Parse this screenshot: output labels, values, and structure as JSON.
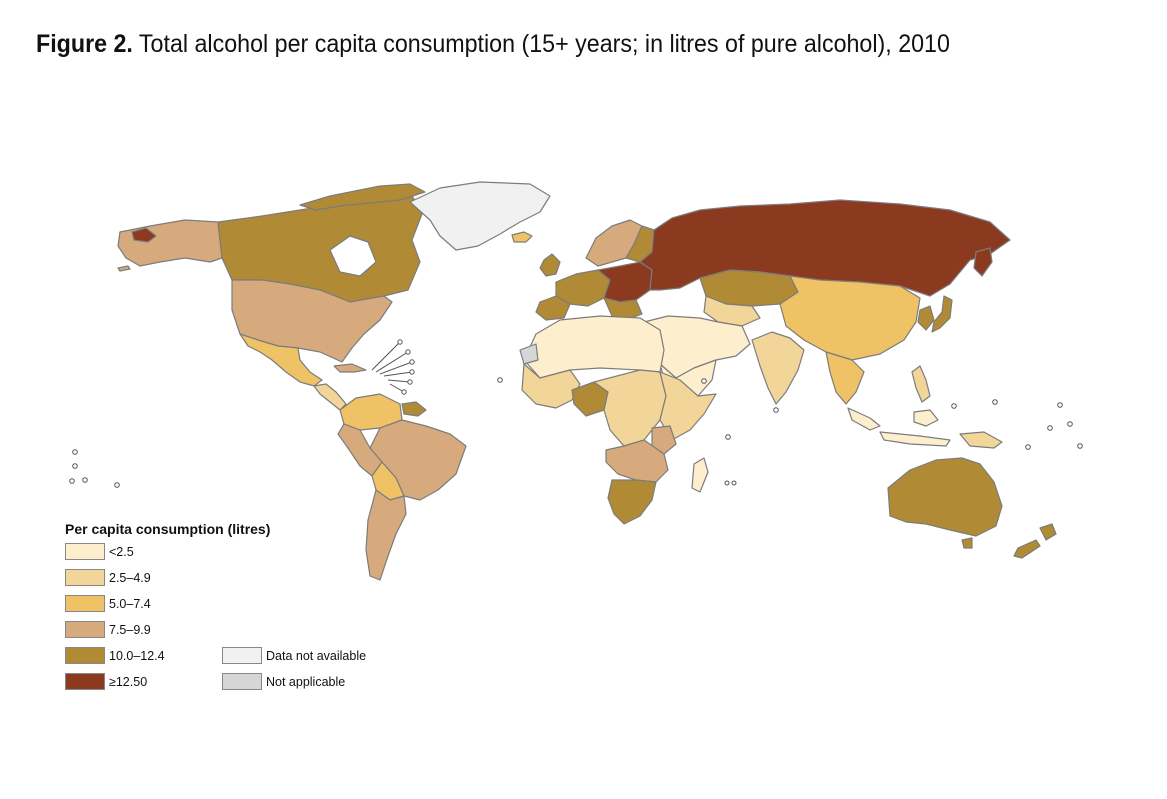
{
  "title": {
    "figure_label": "Figure 2.",
    "text": " Total alcohol per capita consumption (15+ years; in litres of pure alcohol), 2010"
  },
  "legend": {
    "title": "Per capita consumption (litres)",
    "classes": [
      {
        "label": "<2.5",
        "color": "#fdefcd"
      },
      {
        "label": "2.5–4.9",
        "color": "#f2d598"
      },
      {
        "label": "5.0–7.4",
        "color": "#efc265"
      },
      {
        "label": "7.5–9.9",
        "color": "#d6aa7c"
      },
      {
        "label": "10.0–12.4",
        "color": "#b08a34"
      },
      {
        "label": "≥12.50",
        "color": "#8b3a20"
      }
    ],
    "other": [
      {
        "label": "Data not available",
        "color": "#f1f1f1"
      },
      {
        "label": "Not applicable",
        "color": "#d6d6d6"
      }
    ]
  },
  "map_colors": {
    "border": "#7c7c7c",
    "lt2_5": "#fdefcd",
    "c2_5_4_9": "#f2d598",
    "c5_7_4": "#efc265",
    "c7_5_9_9": "#d6aa7c",
    "c10_12_4": "#b08a34",
    "ge12_5": "#8b3a20",
    "no_data": "#f1f1f1",
    "not_applicable": "#d6d6d6"
  }
}
